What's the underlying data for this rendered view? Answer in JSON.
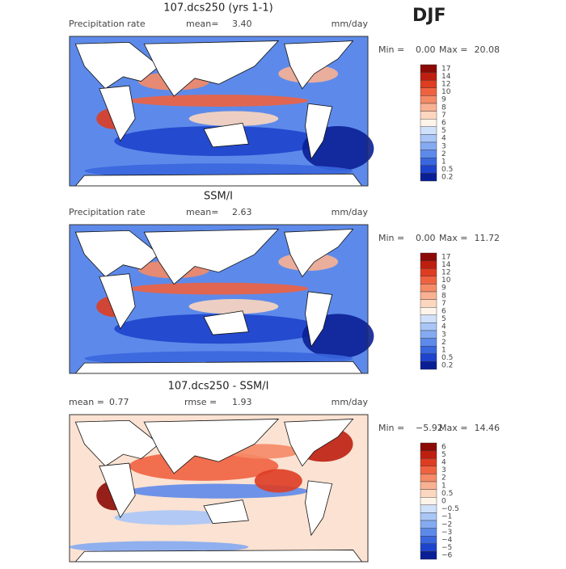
{
  "header": {
    "season": "DJF"
  },
  "panels": [
    {
      "title": "107.dcs250 (yrs 1-1)",
      "field": "Precipitation rate",
      "stat1_label": "mean=",
      "stat1": "3.40",
      "units": "mm/day",
      "min_label": "Min =",
      "min": "0.00",
      "max_label": "Max =",
      "max": "20.08",
      "colorbar": {
        "labels": [
          "17",
          "14",
          "12",
          "10",
          "9",
          "8",
          "7",
          "6",
          "5",
          "4",
          "3",
          "2",
          "1",
          "0.5",
          "0.2"
        ],
        "colors": [
          "#8c0a05",
          "#bd1f10",
          "#de3d22",
          "#ef6240",
          "#f58a66",
          "#f9b193",
          "#fcd6be",
          "#fff4ea",
          "#cfe0fb",
          "#a9c6f7",
          "#84aaf1",
          "#5d8aea",
          "#3a66de",
          "#1e43cc",
          "#0a1f96"
        ]
      }
    },
    {
      "title": "SSM/I",
      "field": "Precipitation rate",
      "stat1_label": "mean=",
      "stat1": "2.63",
      "units": "mm/day",
      "min_label": "Min =",
      "min": "0.00",
      "max_label": "Max =",
      "max": "11.72",
      "colorbar": {
        "labels": [
          "17",
          "14",
          "12",
          "10",
          "9",
          "8",
          "7",
          "6",
          "5",
          "4",
          "3",
          "2",
          "1",
          "0.5",
          "0.2"
        ],
        "colors": [
          "#8c0a05",
          "#bd1f10",
          "#de3d22",
          "#ef6240",
          "#f58a66",
          "#f9b193",
          "#fcd6be",
          "#fff4ea",
          "#cfe0fb",
          "#a9c6f7",
          "#84aaf1",
          "#5d8aea",
          "#3a66de",
          "#1e43cc",
          "#0a1f96"
        ]
      }
    },
    {
      "title": "107.dcs250 - SSM/I",
      "stat1_label": "mean =",
      "stat1": "0.77",
      "stat2_label": "rmse =",
      "stat2": "1.93",
      "units": "mm/day",
      "min_label": "Min =",
      "min": "−5.92",
      "max_label": "Max =",
      "max": "14.46",
      "colorbar": {
        "labels": [
          "6",
          "5",
          "4",
          "3",
          "2",
          "1",
          "0.5",
          "0",
          "−0.5",
          "−1",
          "−2",
          "−3",
          "−4",
          "−5",
          "−6"
        ],
        "colors": [
          "#8c0a05",
          "#bd1f10",
          "#de3d22",
          "#ef6240",
          "#f58a66",
          "#f9b193",
          "#fcd6be",
          "#fff4ea",
          "#cfe0fb",
          "#a9c6f7",
          "#84aaf1",
          "#5d8aea",
          "#3a66de",
          "#1e43cc",
          "#0a1f96"
        ]
      }
    }
  ]
}
